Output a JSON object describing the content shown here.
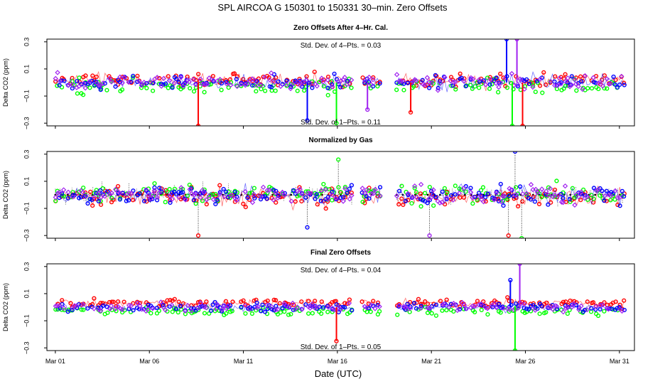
{
  "title": "SPL   AIRCOA G   150301 to 150331   30–min. Zero Offsets",
  "xlabel": "Date (UTC)",
  "colors": {
    "red": "#ff0000",
    "green": "#00ff00",
    "blue": "#0000ff",
    "purple": "#a020f0",
    "black": "#000000"
  },
  "chart_data": [
    {
      "type": "scatter",
      "panel_title": "Zero Offsets After 4–Hr. Cal.",
      "ylabel": "Delta CO2 (ppm)",
      "ylim": [
        -0.32,
        0.32
      ],
      "xlim": [
        0.55,
        31.8
      ],
      "yticks": [
        -0.3,
        -0.1,
        0.1,
        0.3
      ],
      "ytick_labels": [
        "−0.3",
        "−0.1",
        "0.1",
        "0.3"
      ],
      "xticks": [
        1,
        6,
        11,
        16,
        21,
        26,
        31
      ],
      "xtick_labels": [
        "Mar 01",
        "Mar 06",
        "Mar 11",
        "Mar 16",
        "Mar 21",
        "Mar 26",
        "Mar 31"
      ],
      "show_xtick_labels": false,
      "annotations": [
        "Std. Dev. of 4–Pts. =  0.03",
        "Std. Dev. of 1–Pts. =  0.11"
      ],
      "spread": 0.085,
      "gaps": [
        [
          16.8,
          17.3
        ],
        [
          18.3,
          19.1
        ]
      ],
      "spikes": [
        {
          "x": 8.6,
          "value": -0.32
        },
        {
          "x": 14.4,
          "value": -0.28
        },
        {
          "x": 15.95,
          "value": -0.3
        },
        {
          "x": 17.6,
          "value": -0.2
        },
        {
          "x": 19.9,
          "value": -0.22
        },
        {
          "x": 25.0,
          "value": 0.32
        },
        {
          "x": 25.3,
          "value": -0.32
        },
        {
          "x": 25.55,
          "value": 0.32
        },
        {
          "x": 25.85,
          "value": -0.32
        }
      ],
      "series": [
        {
          "name": "red",
          "offset": 0.02
        },
        {
          "name": "green",
          "offset": -0.03
        },
        {
          "name": "blue",
          "offset": 0.0
        },
        {
          "name": "purple",
          "offset": 0.0
        }
      ]
    },
    {
      "type": "scatter",
      "panel_title": "Normalized by Gas",
      "ylabel": "Delta CO2 (ppm)",
      "ylim": [
        -0.32,
        0.32
      ],
      "xlim": [
        0.55,
        31.8
      ],
      "yticks": [
        -0.3,
        -0.1,
        0.1,
        0.3
      ],
      "ytick_labels": [
        "−0.3",
        "−0.1",
        "0.1",
        "0.3"
      ],
      "xticks": [
        1,
        6,
        11,
        16,
        21,
        26,
        31
      ],
      "xtick_labels": [
        "Mar 01",
        "Mar 06",
        "Mar 11",
        "Mar 16",
        "Mar 21",
        "Mar 26",
        "Mar 31"
      ],
      "show_xtick_labels": false,
      "annotations": [],
      "spread": 0.11,
      "baseline": 0.0,
      "gaps": [
        [
          16.8,
          17.3
        ],
        [
          18.3,
          19.1
        ]
      ],
      "spikes": [
        {
          "x": 8.6,
          "value": -0.3
        },
        {
          "x": 14.4,
          "value": -0.24
        },
        {
          "x": 16.05,
          "value": 0.26
        },
        {
          "x": 20.9,
          "value": -0.3
        },
        {
          "x": 25.1,
          "value": -0.3
        },
        {
          "x": 25.45,
          "value": 0.32
        },
        {
          "x": 25.8,
          "value": -0.32
        }
      ],
      "series": [
        {
          "name": "red",
          "offset": -0.02
        },
        {
          "name": "green",
          "offset": 0.01
        },
        {
          "name": "blue",
          "offset": 0.0
        },
        {
          "name": "purple",
          "offset": 0.0
        }
      ]
    },
    {
      "type": "scatter",
      "panel_title": "Final Zero Offsets",
      "ylabel": "Delta CO2 (ppm)",
      "ylim": [
        -0.32,
        0.32
      ],
      "xlim": [
        0.55,
        31.8
      ],
      "yticks": [
        -0.3,
        -0.1,
        0.1,
        0.3
      ],
      "ytick_labels": [
        "−0.3",
        "−0.1",
        "0.1",
        "0.3"
      ],
      "xticks": [
        1,
        6,
        11,
        16,
        21,
        26,
        31
      ],
      "xtick_labels": [
        "Mar 01",
        "Mar 06",
        "Mar 11",
        "Mar 16",
        "Mar 21",
        "Mar 26",
        "Mar 31"
      ],
      "show_xtick_labels": true,
      "annotations": [
        "Std. Dev. of 4–Pts. =  0.04",
        "Std. Dev. of 1–Pts. =  0.05"
      ],
      "spread": 0.05,
      "gaps": [
        [
          16.8,
          17.3
        ],
        [
          18.3,
          19.1
        ]
      ],
      "spikes": [
        {
          "x": 15.95,
          "value": -0.25
        },
        {
          "x": 25.2,
          "value": 0.2
        },
        {
          "x": 25.45,
          "value": -0.32
        },
        {
          "x": 25.7,
          "value": 0.32
        }
      ],
      "series": [
        {
          "name": "red",
          "offset": 0.03
        },
        {
          "name": "green",
          "offset": -0.03
        },
        {
          "name": "blue",
          "offset": 0.0
        },
        {
          "name": "purple",
          "offset": 0.0
        }
      ]
    }
  ]
}
